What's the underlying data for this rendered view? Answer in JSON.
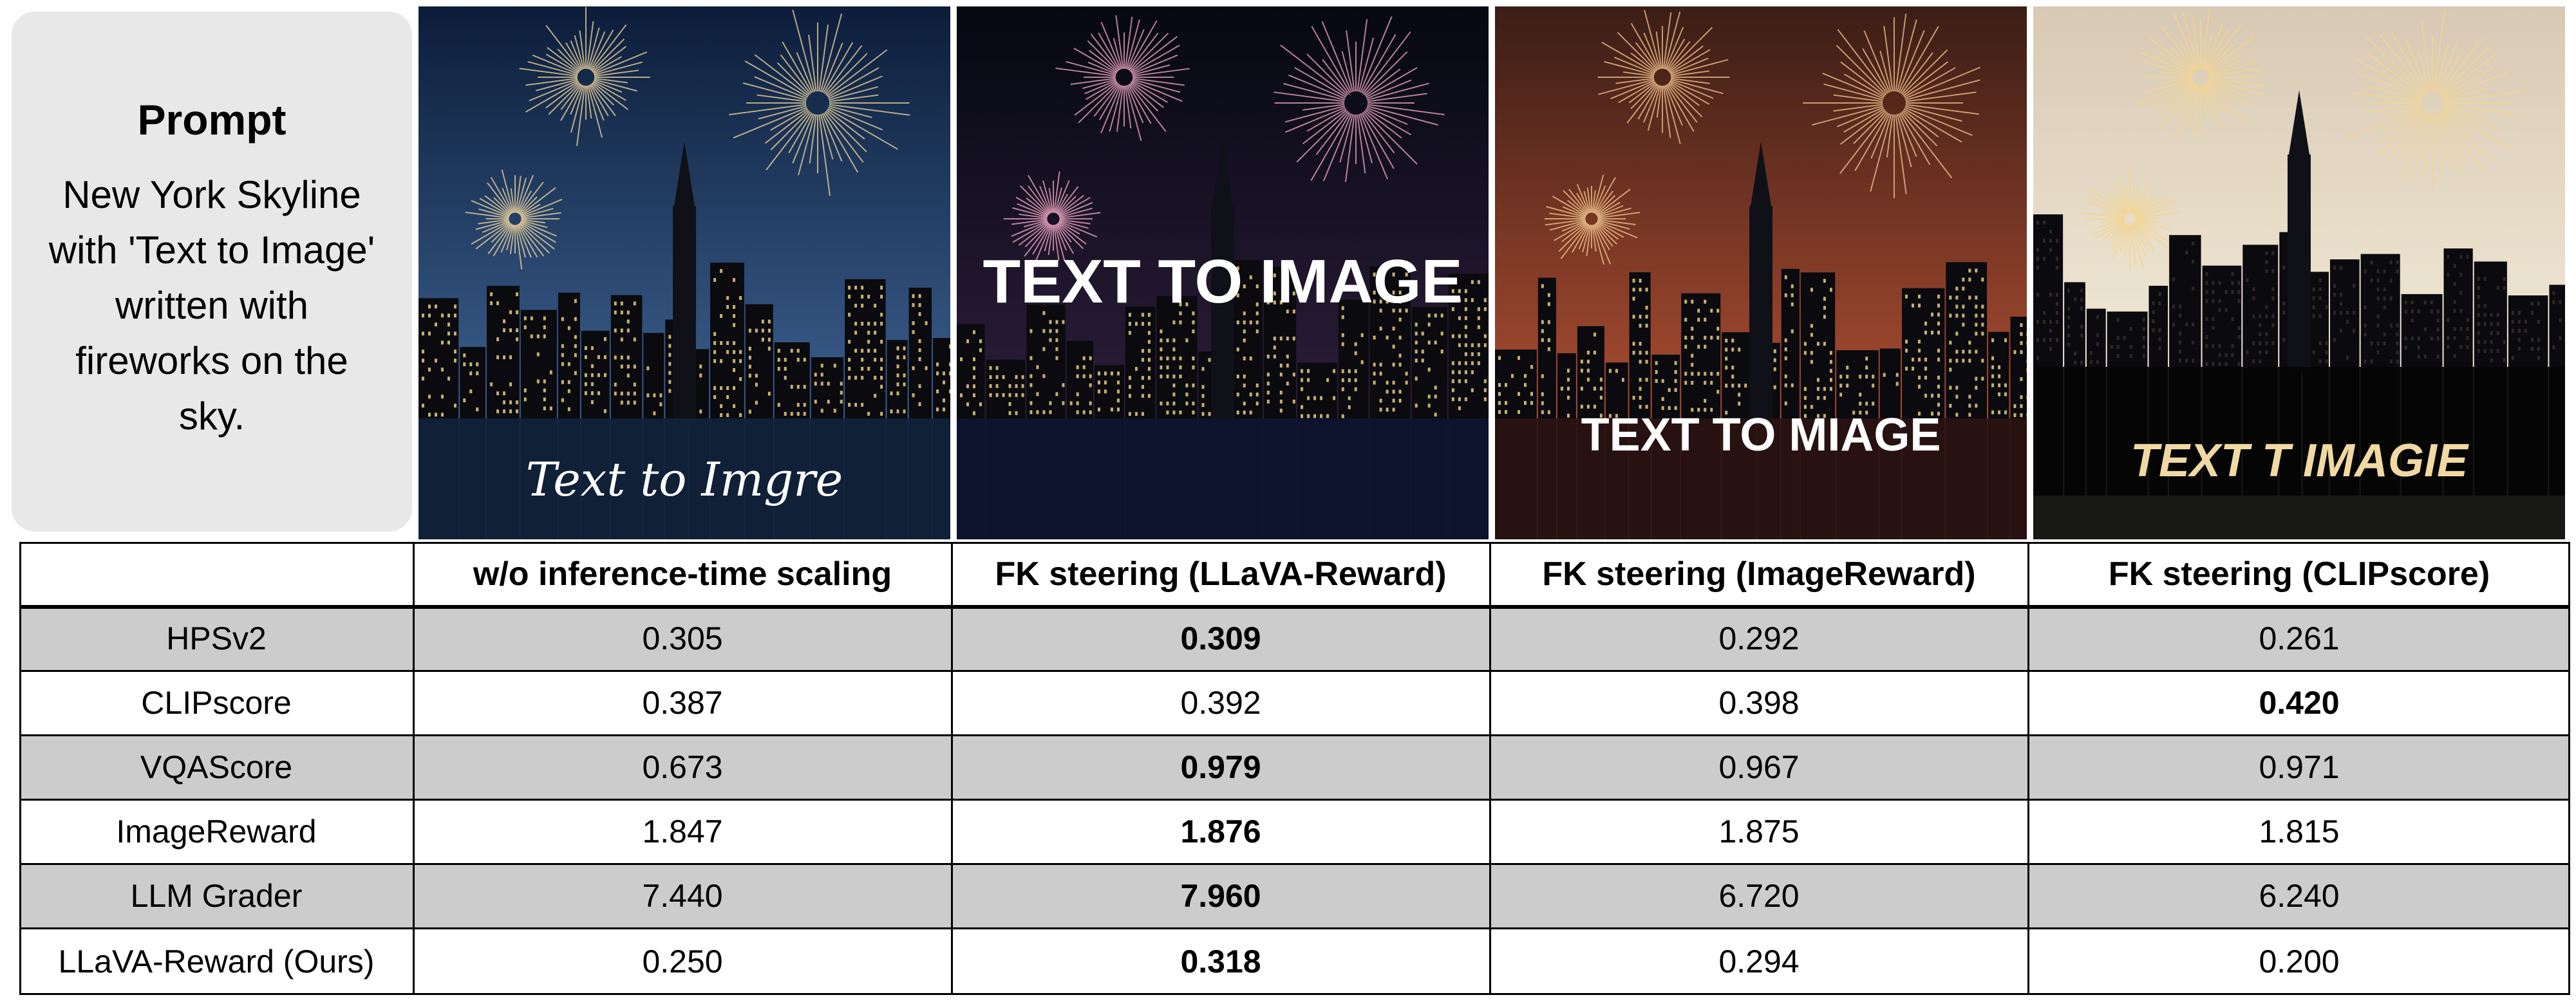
{
  "prompt": {
    "title": "Prompt",
    "lines": [
      "New York Skyline",
      "with 'Text to Image'",
      "written with",
      "fireworks on the",
      "sky."
    ]
  },
  "images": [
    {
      "caption": "Text to Imgre",
      "sky": "#0c1d3a",
      "glow": "#3a5e8c",
      "accent": "#f2d7a0",
      "water": "#10233b"
    },
    {
      "caption": "TEXT TO IMAGE",
      "sky": "#050812",
      "glow": "#2b1c38",
      "accent": "#f2a9c4",
      "water": "#0e1530"
    },
    {
      "caption": "TEXT TO MIAGE",
      "sky": "#3b1d16",
      "glow": "#a84b30",
      "accent": "#f4c68f",
      "water": "#2a1311"
    },
    {
      "caption": "TEXT T IMAGIE",
      "sky": "#d8c9b4",
      "glow": "#f3ecd9",
      "accent": "#f4d68a",
      "water": "#050505"
    }
  ],
  "table": {
    "columns": [
      "",
      "w/o inference-time scaling",
      "FK steering (LLaVA-Reward)",
      "FK steering (ImageReward)",
      "FK steering (CLIPscore)"
    ],
    "rows": [
      {
        "metric": "HPSv2",
        "values": [
          "0.305",
          "0.309",
          "0.292",
          "0.261"
        ],
        "best": 1
      },
      {
        "metric": "CLIPscore",
        "values": [
          "0.387",
          "0.392",
          "0.398",
          "0.420"
        ],
        "best": 3
      },
      {
        "metric": "VQAScore",
        "values": [
          "0.673",
          "0.979",
          "0.967",
          "0.971"
        ],
        "best": 1
      },
      {
        "metric": "ImageReward",
        "values": [
          "1.847",
          "1.876",
          "1.875",
          "1.815"
        ],
        "best": 1
      },
      {
        "metric": "LLM Grader",
        "values": [
          "7.440",
          "7.960",
          "6.720",
          "6.240"
        ],
        "best": 1
      },
      {
        "metric": "LLaVA-Reward (Ours)",
        "values": [
          "0.250",
          "0.318",
          "0.294",
          "0.200"
        ],
        "best": 1
      }
    ]
  },
  "colors": {
    "shaded_row": "#cccccc",
    "prompt_bg": "#e8e8e8"
  }
}
